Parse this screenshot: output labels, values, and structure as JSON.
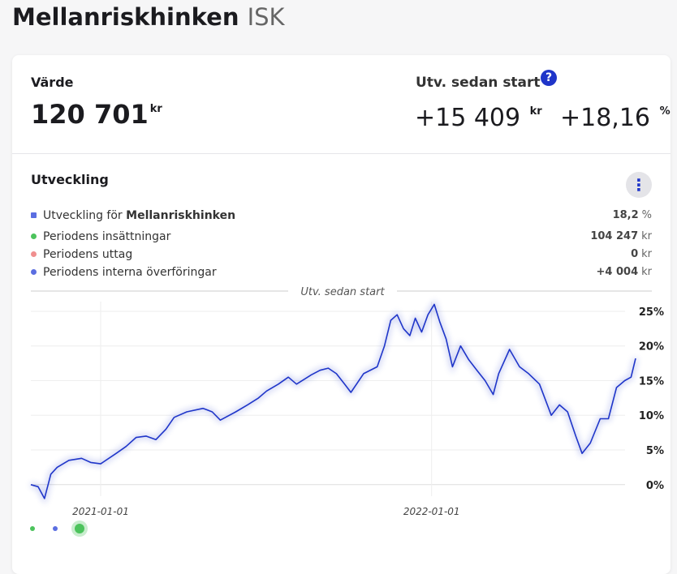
{
  "header": {
    "title": "Mellanriskhinken",
    "subtitle": "ISK"
  },
  "value": {
    "label": "Värde",
    "amount": "120 701",
    "unit": "kr"
  },
  "development": {
    "label": "Utv. sedan start",
    "help": "?",
    "amount": "+15 409",
    "amount_unit": "kr",
    "percent": "+18,16",
    "percent_unit": "%"
  },
  "section": {
    "title": "Utveckling",
    "menu": "⋮",
    "legend": [
      {
        "label": "Utveckling för",
        "label_bold": "Mellanriskhinken",
        "value": "18,2",
        "unit": "%",
        "color": "#5b6ee1",
        "shape": "square"
      },
      {
        "label": "Periodens insättningar",
        "value": "104 247",
        "unit": "kr",
        "color": "#4cc35c",
        "shape": "dot"
      },
      {
        "label": "Periodens uttag",
        "value": "0",
        "unit": "kr",
        "color": "#f08f8f",
        "shape": "dot"
      },
      {
        "label": "Periodens interna överföringar",
        "value": "+4 004",
        "unit": "kr",
        "color": "#5b6ee1",
        "shape": "dot"
      }
    ]
  },
  "chart_data": {
    "type": "line",
    "title": "Utv. sedan start",
    "x": [
      "2020-10-16",
      "2020-10-24",
      "2020-10-31",
      "2020-11-07",
      "2020-11-14",
      "2020-11-27",
      "2020-12-11",
      "2020-12-21",
      "2021-01-01",
      "2021-01-18",
      "2021-01-29",
      "2021-02-09",
      "2021-02-20",
      "2021-03-03",
      "2021-03-14",
      "2021-03-23",
      "2021-04-06",
      "2021-04-24",
      "2021-05-04",
      "2021-05-13",
      "2021-05-30",
      "2021-06-12",
      "2021-06-24",
      "2021-07-03",
      "2021-07-16",
      "2021-07-27",
      "2021-08-05",
      "2021-08-21",
      "2021-08-31",
      "2021-09-09",
      "2021-09-18",
      "2021-09-27",
      "2021-10-04",
      "2021-10-18",
      "2021-11-02",
      "2021-11-10",
      "2021-11-17",
      "2021-11-24",
      "2021-12-01",
      "2021-12-08",
      "2021-12-14",
      "2021-12-21",
      "2021-12-28",
      "2022-01-04",
      "2022-01-10",
      "2022-01-17",
      "2022-01-24",
      "2022-02-02",
      "2022-02-11",
      "2022-02-20",
      "2022-03-01",
      "2022-03-10",
      "2022-03-16",
      "2022-03-28",
      "2022-04-08",
      "2022-04-18",
      "2022-04-30",
      "2022-05-13",
      "2022-05-22",
      "2022-05-31",
      "2022-06-09",
      "2022-06-16",
      "2022-06-25",
      "2022-07-06",
      "2022-07-15",
      "2022-07-24",
      "2022-08-02",
      "2022-08-09",
      "2022-08-14"
    ],
    "series": [
      {
        "color": "#1f35c9",
        "values": [
          0,
          -0.3,
          -2,
          1.5,
          2.5,
          3.5,
          3.8,
          3.2,
          3,
          4.5,
          5.5,
          6.8,
          7,
          6.5,
          8,
          9.7,
          10.5,
          11,
          10.5,
          9.3,
          10.5,
          11.5,
          12.5,
          13.5,
          14.5,
          15.5,
          14.5,
          15.8,
          16.5,
          16.8,
          16,
          14.5,
          13.3,
          16,
          17,
          20,
          23.7,
          24.5,
          22.5,
          21.5,
          24,
          22,
          24.5,
          26,
          23.5,
          21,
          17,
          20,
          18,
          16.5,
          15,
          13,
          16,
          19.5,
          17,
          16,
          14.5,
          10,
          11.5,
          10.5,
          7,
          4.5,
          6,
          9.5,
          9.5,
          14,
          15,
          15.5,
          18.2
        ]
      }
    ],
    "xlim": [
      "2020-10-16",
      "2022-08-14"
    ],
    "xticks": [
      "2021-01-01",
      "2022-01-01"
    ],
    "ylim": [
      -2.6,
      26.4
    ],
    "yticks": [
      {
        "value": 0,
        "label": "0%"
      },
      {
        "value": 5,
        "label": "5%"
      },
      {
        "value": 10,
        "label": "10%"
      },
      {
        "value": 15,
        "label": "15%"
      },
      {
        "value": 20,
        "label": "20%"
      },
      {
        "value": 25,
        "label": "25%"
      }
    ],
    "grid": true
  }
}
